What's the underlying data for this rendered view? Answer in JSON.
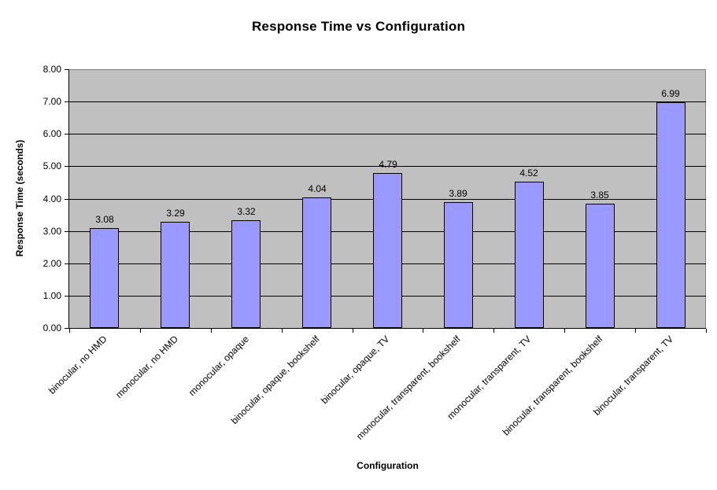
{
  "chart_data": {
    "type": "bar",
    "title": "Response Time vs Configuration",
    "xlabel": "Configuration",
    "ylabel": "Response Time (seconds)",
    "categories": [
      "binocular, no HMD",
      "monocular, no HMD",
      "monocular, opaque",
      "binocular, opaque, bookshelf",
      "binocular, opaque, TV",
      "monocular, transparent, bookshelf",
      "monocular, transparent, TV",
      "binocular, transparent, bookshelf",
      "binocular, transparent, TV"
    ],
    "values": [
      3.08,
      3.29,
      3.32,
      4.04,
      4.79,
      3.89,
      4.52,
      3.85,
      6.99
    ],
    "data_labels": [
      "3.08",
      "3.29",
      "3.32",
      "4.04",
      "4.79",
      "3.89",
      "4.52",
      "3.85",
      "6.99"
    ],
    "ylim": [
      0,
      8
    ],
    "ytick_step": 1,
    "ytick_labels": [
      "0.00",
      "1.00",
      "2.00",
      "3.00",
      "4.00",
      "5.00",
      "6.00",
      "7.00",
      "8.00"
    ],
    "grid": true,
    "legend": "none",
    "colors": {
      "bar_fill": "#9999FF",
      "bar_border": "#000000",
      "plot_background": "#C0C0C0",
      "gridline": "#000000",
      "plot_border": "#808080",
      "page_background": "#FFFFFF",
      "text": "#000000"
    }
  }
}
